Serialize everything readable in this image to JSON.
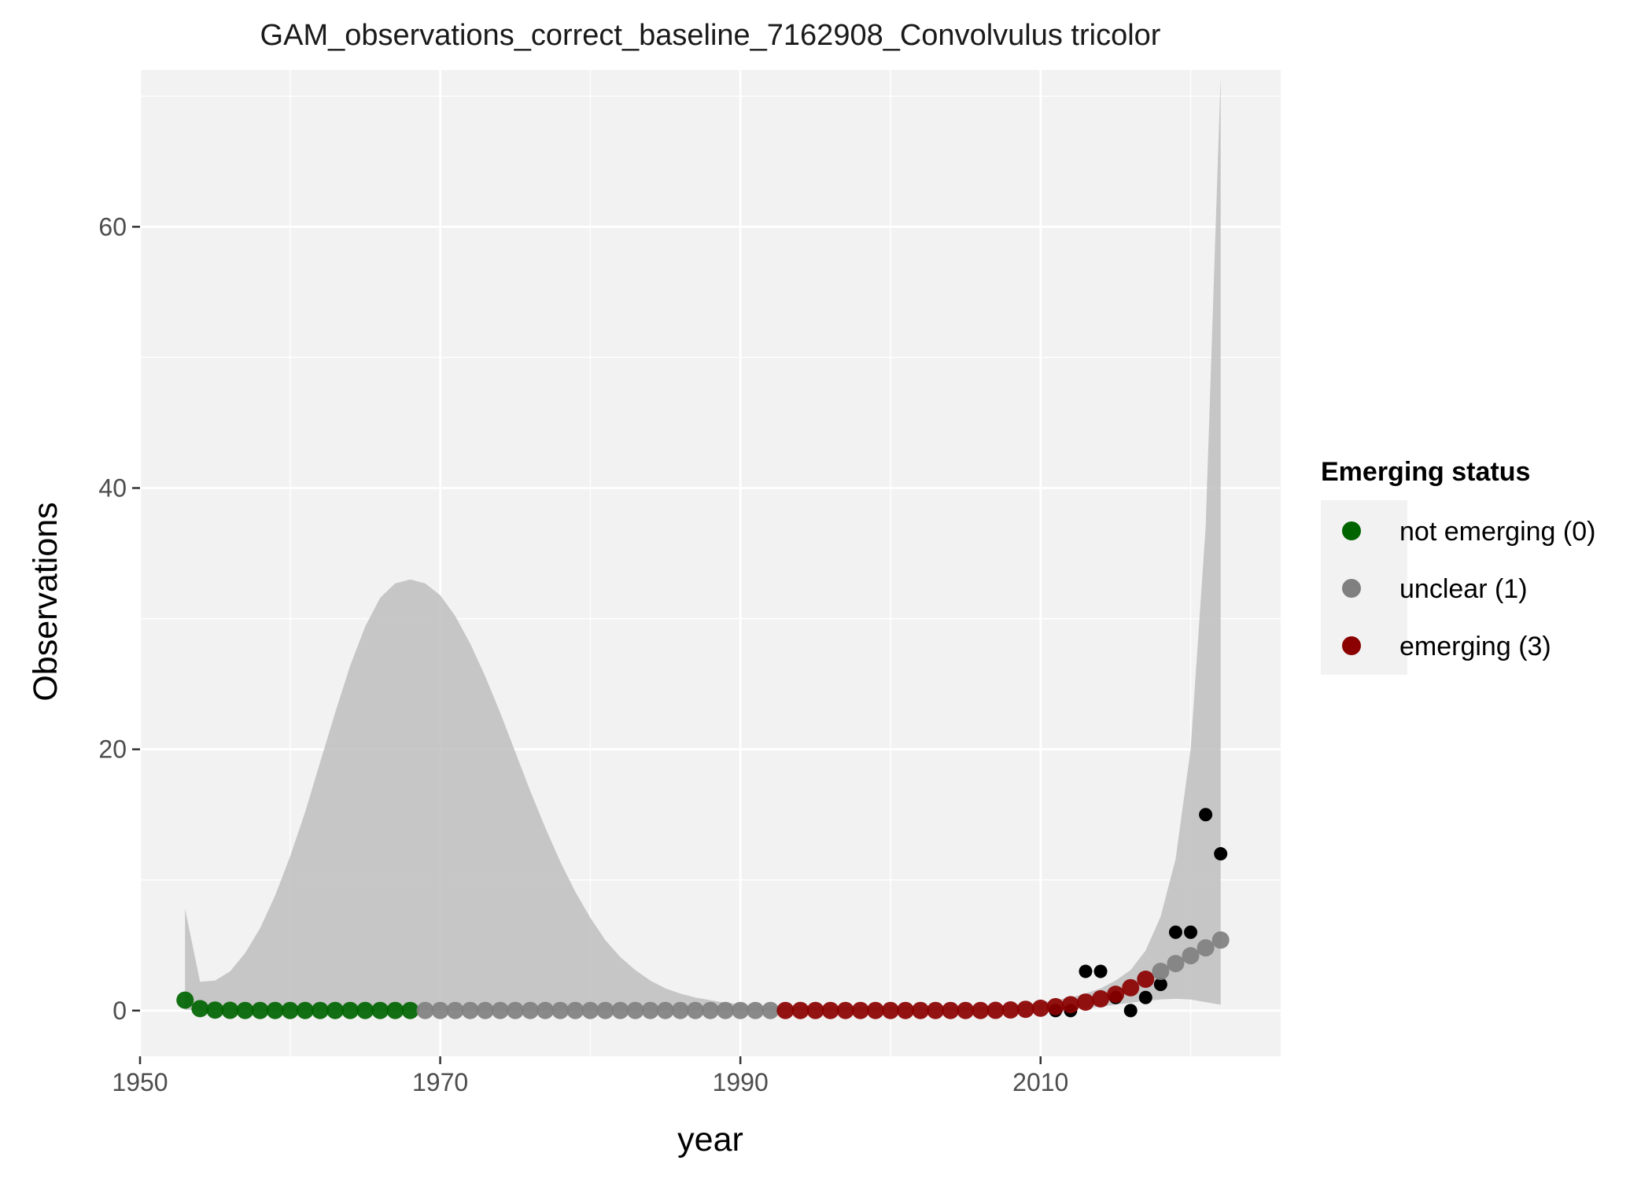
{
  "chart_data": {
    "type": "scatter",
    "title": "GAM_observations_correct_baseline_7162908_Convolvulus tricolor",
    "xlabel": "year",
    "ylabel": "Observations",
    "xlim": [
      1950,
      2026
    ],
    "ylim": [
      -3.5,
      72
    ],
    "x_ticks": [
      1950,
      1970,
      1990,
      2010
    ],
    "y_ticks": [
      0,
      20,
      40,
      60
    ],
    "grid": true,
    "panel_background": "#f2f2f2",
    "grid_color": "#ffffff",
    "legend": {
      "title": "Emerging status",
      "position": "right",
      "entries": [
        {
          "label": "not emerging (0)",
          "color": "#006400"
        },
        {
          "label": "unclear (1)",
          "color": "#808080"
        },
        {
          "label": "emerging (3)",
          "color": "#8b0000"
        }
      ]
    },
    "observed_color": "#000000",
    "ribbon_color": "#bebebe",
    "observed": {
      "x": [
        2011,
        2012,
        2013,
        2014,
        2015,
        2016,
        2017,
        2018,
        2019,
        2020,
        2021,
        2022
      ],
      "y": [
        0,
        0,
        3,
        3,
        1,
        0,
        1,
        2,
        6,
        6,
        15,
        12
      ]
    },
    "ribbon": {
      "x": [
        1953,
        1954,
        1955,
        1956,
        1957,
        1958,
        1959,
        1960,
        1961,
        1962,
        1963,
        1964,
        1965,
        1966,
        1967,
        1968,
        1969,
        1970,
        1971,
        1972,
        1973,
        1974,
        1975,
        1976,
        1977,
        1978,
        1979,
        1980,
        1981,
        1982,
        1983,
        1984,
        1985,
        1986,
        1987,
        1988,
        1989,
        1990,
        1991,
        1992,
        1993,
        1994,
        1995,
        1996,
        1997,
        1998,
        1999,
        2000,
        2001,
        2002,
        2003,
        2004,
        2005,
        2006,
        2007,
        2008,
        2009,
        2010,
        2011,
        2012,
        2013,
        2014,
        2015,
        2016,
        2017,
        2018,
        2019,
        2020,
        2021,
        2022
      ],
      "upper": [
        7.8,
        2.2,
        2.3,
        3.0,
        4.4,
        6.3,
        8.8,
        11.8,
        15.2,
        19.0,
        22.8,
        26.4,
        29.4,
        31.6,
        32.7,
        33.0,
        32.7,
        31.8,
        30.2,
        28.1,
        25.6,
        22.8,
        19.8,
        16.8,
        14.0,
        11.4,
        9.1,
        7.1,
        5.4,
        4.1,
        3.1,
        2.3,
        1.7,
        1.3,
        1.0,
        0.8,
        0.6,
        0.5,
        0.4,
        0.3,
        0.3,
        0.3,
        0.3,
        0.3,
        0.3,
        0.3,
        0.3,
        0.3,
        0.3,
        0.3,
        0.3,
        0.3,
        0.3,
        0.3,
        0.4,
        0.4,
        0.5,
        0.6,
        0.8,
        1.0,
        1.3,
        1.7,
        2.3,
        3.1,
        4.6,
        7.2,
        11.6,
        20.0,
        37.0,
        71.5
      ],
      "lower": [
        0.05,
        0.04,
        0.03,
        0.02,
        0.02,
        0.01,
        0.01,
        0.01,
        0.01,
        0.01,
        0.01,
        0.01,
        0.01,
        0.01,
        0.01,
        0.01,
        0.01,
        0.01,
        0.01,
        0.01,
        0.01,
        0.01,
        0.01,
        0.01,
        0.01,
        0.01,
        0.01,
        0.01,
        0.01,
        0.01,
        0.01,
        0.01,
        0.01,
        0.01,
        0.01,
        0.01,
        0.01,
        0.01,
        0.01,
        0.01,
        0.01,
        0.01,
        0.01,
        0.01,
        0.01,
        0.01,
        0.01,
        0.01,
        0.01,
        0.01,
        0.01,
        0.01,
        0.01,
        0.01,
        0.01,
        0.02,
        0.03,
        0.05,
        0.08,
        0.12,
        0.2,
        0.3,
        0.45,
        0.6,
        0.75,
        0.85,
        0.9,
        0.85,
        0.65,
        0.45
      ]
    },
    "fitted": {
      "x": [
        1953,
        1954,
        1955,
        1956,
        1957,
        1958,
        1959,
        1960,
        1961,
        1962,
        1963,
        1964,
        1965,
        1966,
        1967,
        1968,
        1969,
        1970,
        1971,
        1972,
        1973,
        1974,
        1975,
        1976,
        1977,
        1978,
        1979,
        1980,
        1981,
        1982,
        1983,
        1984,
        1985,
        1986,
        1987,
        1988,
        1989,
        1990,
        1991,
        1992,
        1993,
        1994,
        1995,
        1996,
        1997,
        1998,
        1999,
        2000,
        2001,
        2002,
        2003,
        2004,
        2005,
        2006,
        2007,
        2008,
        2009,
        2010,
        2011,
        2012,
        2013,
        2014,
        2015,
        2016,
        2017,
        2018,
        2019,
        2020,
        2021,
        2022
      ],
      "y": [
        0.8,
        0.15,
        0.04,
        0.02,
        0.01,
        0.01,
        0.01,
        0.01,
        0.01,
        0.01,
        0.01,
        0.01,
        0.01,
        0.01,
        0.01,
        0.01,
        0.01,
        0.01,
        0.01,
        0.01,
        0.01,
        0.01,
        0.01,
        0.01,
        0.01,
        0.01,
        0.01,
        0.01,
        0.01,
        0.01,
        0.01,
        0.01,
        0.01,
        0.01,
        0.01,
        0.01,
        0.01,
        0.01,
        0.01,
        0.01,
        0.01,
        0.01,
        0.01,
        0.01,
        0.01,
        0.01,
        0.01,
        0.01,
        0.01,
        0.01,
        0.01,
        0.01,
        0.01,
        0.01,
        0.02,
        0.05,
        0.1,
        0.18,
        0.3,
        0.45,
        0.65,
        0.9,
        1.25,
        1.75,
        2.4,
        3.0,
        3.6,
        4.2,
        4.8,
        5.4
      ],
      "status": [
        0,
        0,
        0,
        0,
        0,
        0,
        0,
        0,
        0,
        0,
        0,
        0,
        0,
        0,
        0,
        0,
        1,
        1,
        1,
        1,
        1,
        1,
        1,
        1,
        1,
        1,
        1,
        1,
        1,
        1,
        1,
        1,
        1,
        1,
        1,
        1,
        1,
        1,
        1,
        1,
        3,
        3,
        3,
        3,
        3,
        3,
        3,
        3,
        3,
        3,
        3,
        3,
        3,
        3,
        3,
        3,
        3,
        3,
        3,
        3,
        3,
        3,
        3,
        3,
        3,
        1,
        1,
        1,
        1,
        1
      ]
    }
  }
}
